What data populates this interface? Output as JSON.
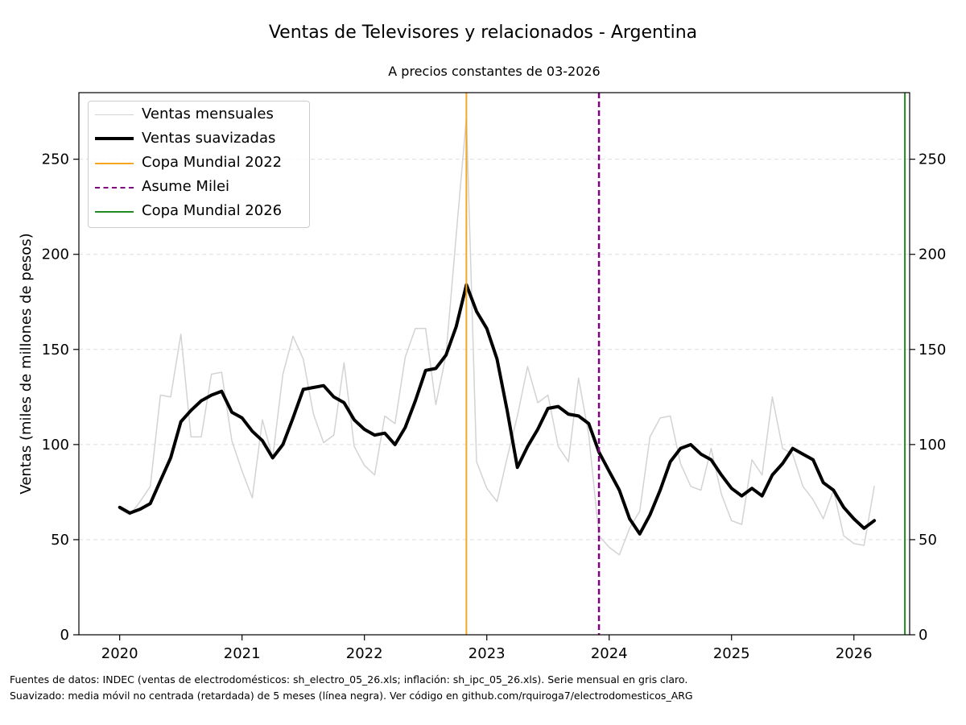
{
  "chart_data": {
    "type": "line",
    "title": "Ventas de Televisores y relacionados - Argentina",
    "subtitle": "A precios constantes de 03-2026",
    "ylabel": "Ventas (miles de millones de pesos)",
    "xlabel": "",
    "xlim": [
      "2019-09-01",
      "2026-06-15"
    ],
    "ylim": [
      0,
      285
    ],
    "x_ticks": [
      "2020",
      "2021",
      "2022",
      "2023",
      "2024",
      "2025",
      "2026"
    ],
    "y_ticks": [
      0,
      50,
      100,
      150,
      200,
      250
    ],
    "y_ticks_right": [
      0,
      50,
      100,
      150,
      200,
      250
    ],
    "grid": "horizontal dashed",
    "legend_position": "top-left",
    "x_start": "2020-01",
    "series": [
      {
        "name": "Ventas mensuales",
        "color": "#d3d3d3",
        "values": [
          66,
          63,
          70,
          78,
          126,
          125,
          158,
          104,
          104,
          137,
          138,
          102,
          86,
          72,
          113,
          93,
          137,
          157,
          145,
          116,
          101,
          105,
          143,
          99,
          89,
          84,
          115,
          111,
          146,
          161,
          161,
          121,
          147,
          210,
          272,
          91,
          77,
          70,
          93,
          115,
          141,
          122,
          126,
          99,
          91,
          135,
          105,
          52,
          46,
          42,
          56,
          65,
          104,
          114,
          115,
          90,
          78,
          76,
          98,
          74,
          60,
          58,
          92,
          84,
          125,
          98,
          95,
          78,
          71,
          61,
          76,
          52,
          48,
          47,
          78
        ]
      },
      {
        "name": "Ventas suavizadas",
        "color": "#000000",
        "values": [
          67,
          64,
          66,
          69,
          81,
          93,
          112,
          118,
          123,
          126,
          128,
          117,
          114,
          107,
          102,
          93,
          100,
          114,
          129,
          130,
          131,
          125,
          122,
          113,
          108,
          105,
          106,
          100,
          109,
          123,
          139,
          140,
          147,
          162,
          184,
          170,
          161,
          145,
          118,
          88,
          99,
          108,
          119,
          120,
          116,
          115,
          111,
          96,
          86,
          76,
          61,
          53,
          63,
          76,
          91,
          98,
          100,
          95,
          92,
          84,
          77,
          73,
          77,
          73,
          84,
          90,
          98,
          95,
          92,
          80,
          76,
          67,
          61,
          56,
          60
        ]
      }
    ],
    "vlines": [
      {
        "name": "Copa Mundial 2022",
        "date": "2022-11",
        "color": "#f5a623",
        "style": "solid"
      },
      {
        "name": "Asume Milei",
        "date": "2023-12",
        "color": "#800080",
        "style": "dashed"
      },
      {
        "name": "Copa Mundial 2026",
        "date": "2026-06",
        "color": "#228b22",
        "style": "solid"
      }
    ]
  },
  "footnotes": {
    "line1": "Fuentes de datos: INDEC (ventas de electrodomésticos: sh_electro_05_26.xls; inflación: sh_ipc_05_26.xls). Serie mensual en gris claro.",
    "line2": "Suavizado: media móvil no centrada (retardada) de 5 meses (línea negra). Ver código en github.com/rquiroga7/electrodomesticos_ARG"
  }
}
